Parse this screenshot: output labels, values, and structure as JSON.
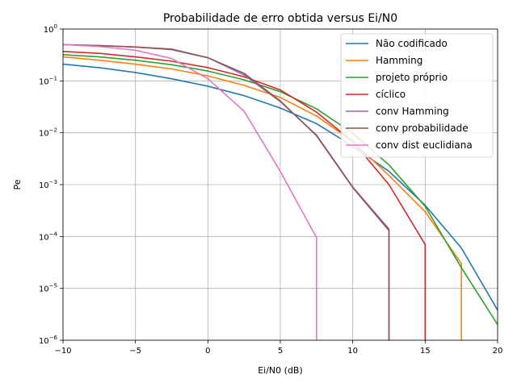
{
  "chart_data": {
    "type": "line",
    "title": "Probabilidade de erro obtida versus Ei/N0",
    "xlabel": "Ei/N0 (dB)",
    "ylabel": "Pe",
    "xlim": [
      -10,
      20
    ],
    "ylim": [
      1e-06,
      1
    ],
    "yscale": "log",
    "grid": true,
    "legend_position": "top-right",
    "x_ticks": [
      -10,
      -5,
      0,
      5,
      10,
      15,
      20
    ],
    "x_tick_labels": [
      "−10",
      "−5",
      "0",
      "5",
      "10",
      "15",
      "20"
    ],
    "y_ticks": [
      1e-06,
      1e-05,
      0.0001,
      0.001,
      0.01,
      0.1,
      1
    ],
    "y_tick_labels": [
      {
        "base": "10",
        "exp": "−6"
      },
      {
        "base": "10",
        "exp": "−5"
      },
      {
        "base": "10",
        "exp": "−4"
      },
      {
        "base": "10",
        "exp": "−3"
      },
      {
        "base": "10",
        "exp": "−2"
      },
      {
        "base": "10",
        "exp": "−1"
      },
      {
        "base": "10",
        "exp": "0"
      }
    ],
    "series": [
      {
        "name": "Não codificado",
        "color": "#1f77b4",
        "x": [
          -10,
          -7.5,
          -5,
          -2.5,
          0,
          2.5,
          5,
          7.5,
          10,
          12.5,
          15,
          17.5,
          20
        ],
        "y": [
          0.21,
          0.18,
          0.145,
          0.11,
          0.079,
          0.052,
          0.03,
          0.015,
          0.0055,
          0.0018,
          0.0004,
          6e-05,
          3.8e-06
        ]
      },
      {
        "name": "Hamming",
        "color": "#ff7f0e",
        "x": [
          -10,
          -7.5,
          -5,
          -2.5,
          0,
          2.5,
          5,
          7.5,
          10,
          12.5,
          15,
          17.5,
          17.5
        ],
        "y": [
          0.29,
          0.25,
          0.21,
          0.17,
          0.125,
          0.082,
          0.048,
          0.021,
          0.0068,
          0.0015,
          0.0003,
          3e-05,
          1e-06
        ]
      },
      {
        "name": "projeto próprio",
        "color": "#2ca02c",
        "x": [
          -10,
          -7.5,
          -5,
          -2.5,
          0,
          2.5,
          5,
          7.5,
          10,
          12.5,
          15,
          17.5,
          20
        ],
        "y": [
          0.32,
          0.29,
          0.25,
          0.205,
          0.155,
          0.105,
          0.062,
          0.029,
          0.0098,
          0.0024,
          0.00038,
          2.5e-05,
          2e-06
        ]
      },
      {
        "name": "cíclico",
        "color": "#d62728",
        "x": [
          -10,
          -7.5,
          -5,
          -2.5,
          0,
          2.5,
          5,
          7.5,
          10,
          12.5,
          15,
          15
        ],
        "y": [
          0.37,
          0.34,
          0.29,
          0.24,
          0.18,
          0.12,
          0.067,
          0.025,
          0.0068,
          0.001,
          7e-05,
          1e-06
        ]
      },
      {
        "name": "conv Hamming",
        "color": "#9467bd",
        "x": [
          -10,
          -7.5,
          -5,
          -2.5,
          0,
          2.5,
          5,
          7.5,
          10,
          12.5,
          12.5
        ],
        "y": [
          0.5,
          0.48,
          0.45,
          0.4,
          0.28,
          0.13,
          0.04,
          0.009,
          0.0009,
          0.00014,
          1e-06
        ]
      },
      {
        "name": "conv probabilidade",
        "color": "#8c564b",
        "x": [
          -10,
          -7.5,
          -5,
          -2.5,
          0,
          2.5,
          5,
          7.5,
          10,
          12.5,
          12.5
        ],
        "y": [
          0.5,
          0.48,
          0.45,
          0.41,
          0.28,
          0.14,
          0.041,
          0.0088,
          0.00088,
          0.00013,
          1e-06
        ]
      },
      {
        "name": "conv dist euclidiana",
        "color": "#e377c2",
        "x": [
          -10,
          -7.5,
          -5,
          -2.5,
          0,
          2.5,
          5,
          7.5,
          7.5
        ],
        "y": [
          0.5,
          0.46,
          0.39,
          0.27,
          0.11,
          0.026,
          0.0018,
          9.5e-05,
          1e-06
        ]
      }
    ]
  }
}
